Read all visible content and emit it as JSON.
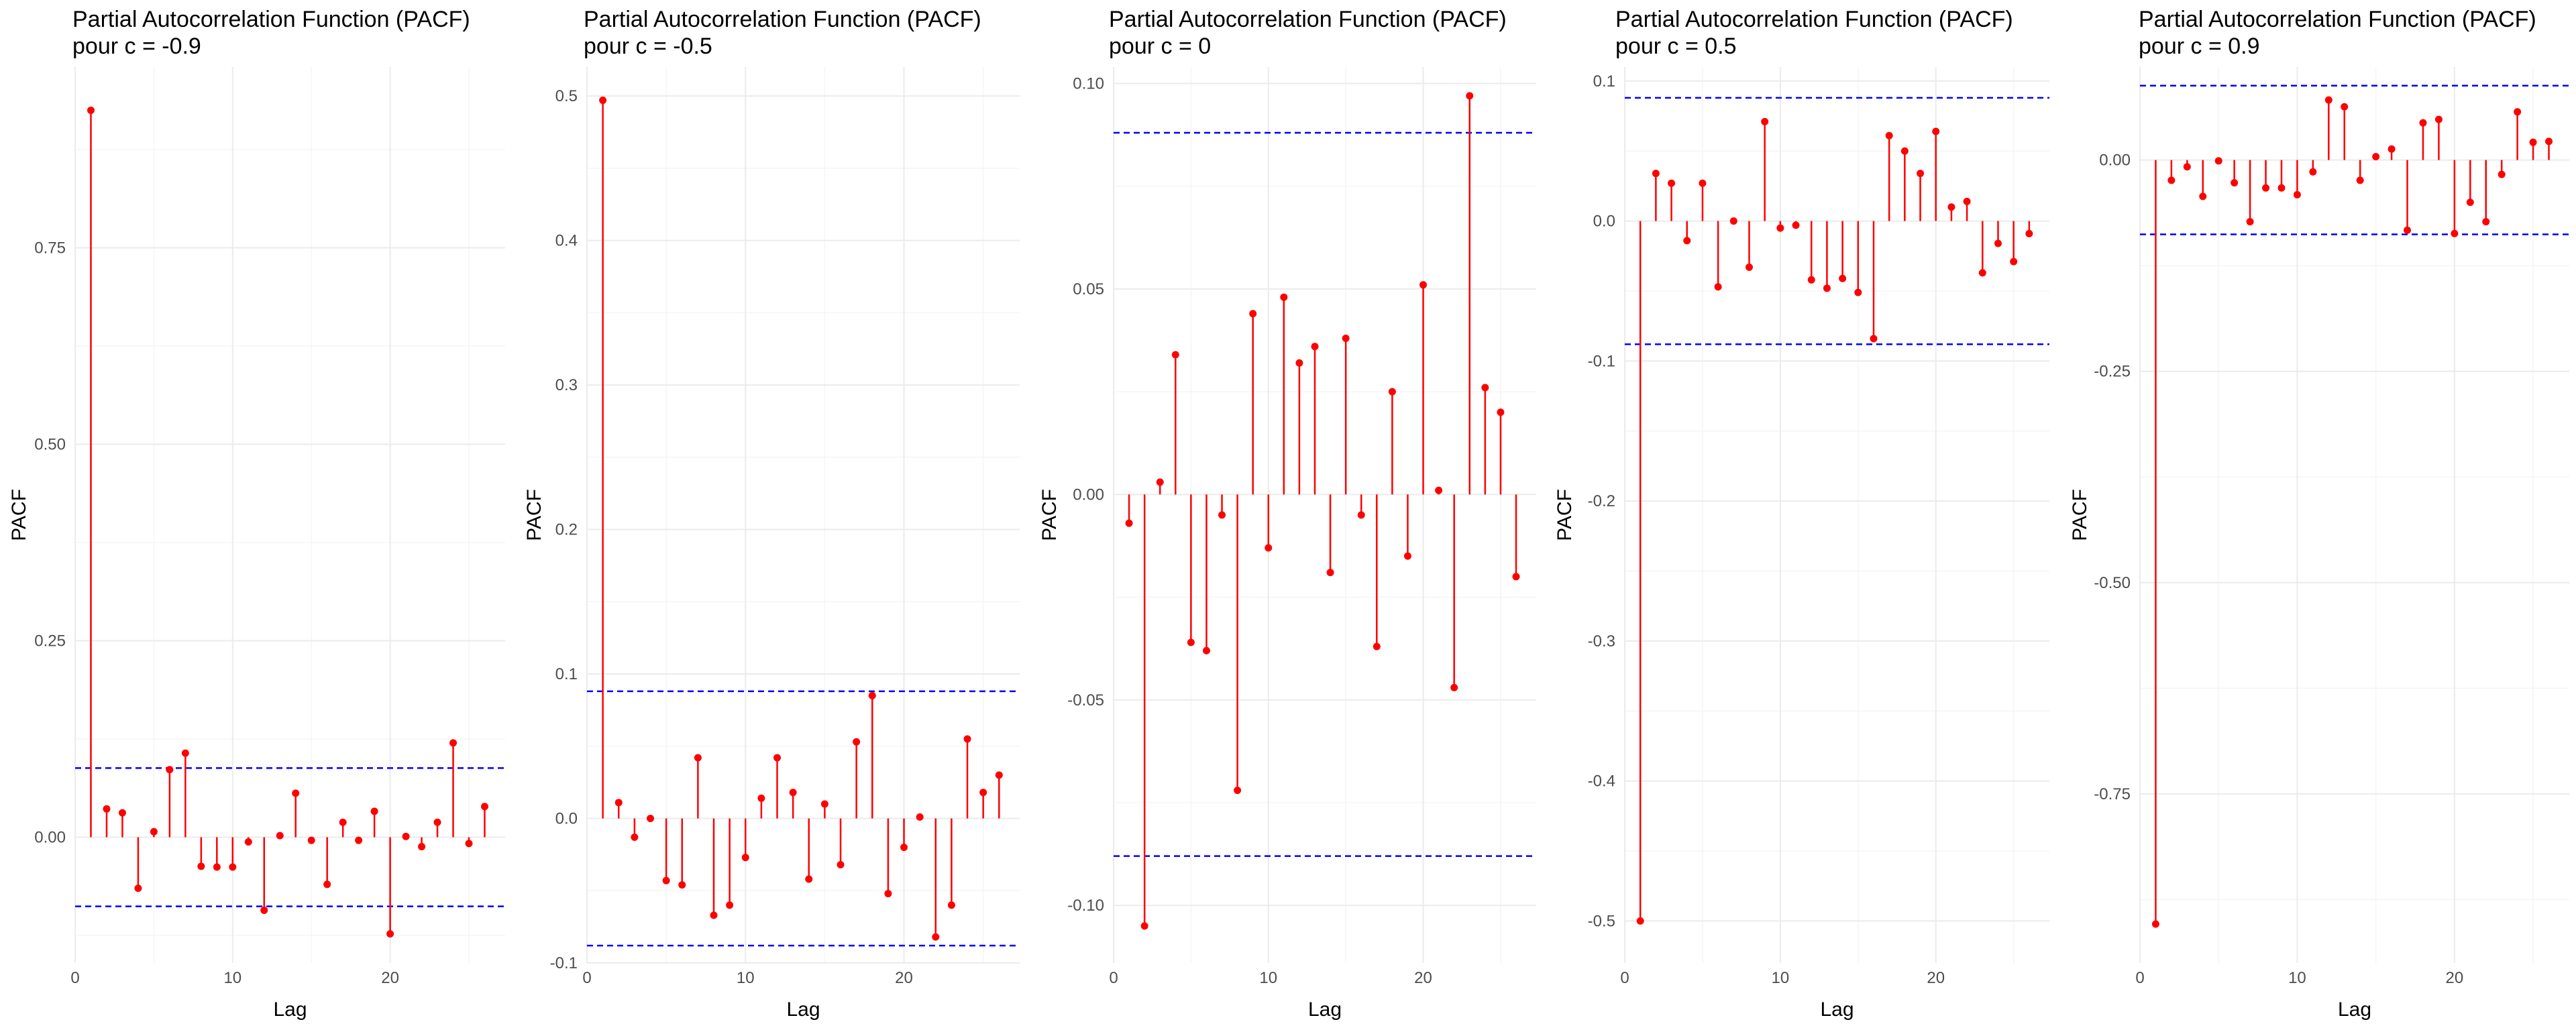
{
  "colors": {
    "stem": "#ff0000",
    "point": "#ff0000",
    "ci_line": "#0000ff",
    "grid_major": "#ebebeb",
    "grid_minor": "#f5f5f5",
    "tick_text": "#4d4d4d"
  },
  "chart_data": [
    {
      "type": "lollipop",
      "title": "Partial Autocorrelation Function (PACF)",
      "subtitle": " pour c = -0.9",
      "xlabel": "Lag",
      "ylabel": "PACF",
      "xlim": [
        0,
        27.3
      ],
      "ylim": [
        -0.16,
        0.98
      ],
      "xticks": [
        0,
        10,
        20
      ],
      "xtick_labels": [
        "0",
        "10",
        "20"
      ],
      "yticks": [
        0,
        0.25,
        0.5,
        0.75
      ],
      "ytick_labels": [
        "0.00",
        "0.25",
        "0.50",
        "0.75"
      ],
      "ci": 0.088,
      "grid": true,
      "x": [
        1,
        2,
        3,
        4,
        5,
        6,
        7,
        8,
        9,
        10,
        11,
        12,
        13,
        14,
        15,
        16,
        17,
        18,
        19,
        20,
        21,
        22,
        23,
        24,
        25,
        26
      ],
      "values": [
        0.925,
        0.036,
        0.031,
        -0.065,
        0.007,
        0.086,
        0.107,
        -0.037,
        -0.038,
        -0.038,
        -0.006,
        -0.093,
        0.002,
        0.056,
        -0.004,
        -0.06,
        0.019,
        -0.004,
        0.033,
        -0.123,
        0.001,
        -0.012,
        0.019,
        0.12,
        -0.008,
        0.039
      ]
    },
    {
      "type": "lollipop",
      "title": "Partial Autocorrelation Function (PACF)",
      "subtitle": " pour c = -0.5",
      "xlabel": "Lag",
      "ylabel": "PACF",
      "xlim": [
        0,
        27.3
      ],
      "ylim": [
        -0.1,
        0.52
      ],
      "xticks": [
        0,
        10,
        20
      ],
      "xtick_labels": [
        "0",
        "10",
        "20"
      ],
      "yticks": [
        -0.1,
        0,
        0.1,
        0.2,
        0.3,
        0.4,
        0.5
      ],
      "ytick_labels": [
        "-0.1",
        "0.0",
        "0.1",
        "0.2",
        "0.3",
        "0.4",
        "0.5"
      ],
      "ci": 0.088,
      "grid": true,
      "x": [
        1,
        2,
        3,
        4,
        5,
        6,
        7,
        8,
        9,
        10,
        11,
        12,
        13,
        14,
        15,
        16,
        17,
        18,
        19,
        20,
        21,
        22,
        23,
        24,
        25,
        26
      ],
      "values": [
        0.497,
        0.011,
        -0.013,
        0.0,
        -0.043,
        -0.046,
        0.042,
        -0.067,
        -0.06,
        -0.027,
        0.014,
        0.042,
        0.018,
        -0.042,
        0.01,
        -0.032,
        0.053,
        0.085,
        -0.052,
        -0.02,
        0.001,
        -0.082,
        -0.06,
        0.055,
        0.018,
        0.03
      ]
    },
    {
      "type": "lollipop",
      "title": "Partial Autocorrelation Function (PACF)",
      "subtitle": " pour c = 0",
      "xlabel": "Lag",
      "ylabel": "PACF",
      "xlim": [
        0,
        27.3
      ],
      "ylim": [
        -0.114,
        0.104
      ],
      "xticks": [
        0,
        10,
        20
      ],
      "xtick_labels": [
        "0",
        "10",
        "20"
      ],
      "yticks": [
        -0.1,
        -0.05,
        0,
        0.05,
        0.1
      ],
      "ytick_labels": [
        "-0.10",
        "-0.05",
        "0.00",
        "0.05",
        "0.10"
      ],
      "ci": 0.088,
      "grid": true,
      "x": [
        1,
        2,
        3,
        4,
        5,
        6,
        7,
        8,
        9,
        10,
        11,
        12,
        13,
        14,
        15,
        16,
        17,
        18,
        19,
        20,
        21,
        22,
        23,
        24,
        25,
        26
      ],
      "values": [
        -0.007,
        -0.105,
        0.003,
        0.034,
        -0.036,
        -0.038,
        -0.005,
        -0.072,
        0.044,
        -0.013,
        0.048,
        0.032,
        0.036,
        -0.019,
        0.038,
        -0.005,
        -0.037,
        0.025,
        -0.015,
        0.051,
        0.001,
        -0.047,
        0.097,
        0.026,
        0.02,
        -0.02
      ]
    },
    {
      "type": "lollipop",
      "title": "Partial Autocorrelation Function (PACF)",
      "subtitle": " pour c = 0.5",
      "xlabel": "Lag",
      "ylabel": "PACF",
      "xlim": [
        0,
        27.3
      ],
      "ylim": [
        -0.53,
        0.11
      ],
      "xticks": [
        0,
        10,
        20
      ],
      "xtick_labels": [
        "0",
        "10",
        "20"
      ],
      "yticks": [
        -0.5,
        -0.4,
        -0.3,
        -0.2,
        -0.1,
        0,
        0.1
      ],
      "ytick_labels": [
        "-0.5",
        "-0.4",
        "-0.3",
        "-0.2",
        "-0.1",
        "0.0",
        "0.1"
      ],
      "ci": 0.088,
      "grid": true,
      "x": [
        1,
        2,
        3,
        4,
        5,
        6,
        7,
        8,
        9,
        10,
        11,
        12,
        13,
        14,
        15,
        16,
        17,
        18,
        19,
        20,
        21,
        22,
        23,
        24,
        25,
        26
      ],
      "values": [
        -0.5,
        0.034,
        0.027,
        -0.014,
        0.027,
        -0.047,
        0.0,
        -0.033,
        0.071,
        -0.005,
        -0.003,
        -0.042,
        -0.048,
        -0.041,
        -0.051,
        -0.084,
        0.061,
        0.05,
        0.034,
        0.064,
        0.01,
        0.014,
        -0.037,
        -0.016,
        -0.029,
        -0.009
      ]
    },
    {
      "type": "lollipop",
      "title": "Partial Autocorrelation Function (PACF)",
      "subtitle": " pour c = 0.9",
      "xlabel": "Lag",
      "ylabel": "PACF",
      "xlim": [
        0,
        27.3
      ],
      "ylim": [
        -0.95,
        0.11
      ],
      "xticks": [
        0,
        10,
        20
      ],
      "xtick_labels": [
        "0",
        "10",
        "20"
      ],
      "yticks": [
        -0.75,
        -0.5,
        -0.25,
        0
      ],
      "ytick_labels": [
        "-0.75",
        "-0.50",
        "-0.25",
        "0.00"
      ],
      "ci": 0.088,
      "grid": true,
      "x": [
        1,
        2,
        3,
        4,
        5,
        6,
        7,
        8,
        9,
        10,
        11,
        12,
        13,
        14,
        15,
        16,
        17,
        18,
        19,
        20,
        21,
        22,
        23,
        24,
        25,
        26
      ],
      "values": [
        -0.904,
        -0.024,
        -0.008,
        -0.043,
        -0.001,
        -0.027,
        -0.073,
        -0.033,
        -0.033,
        -0.041,
        -0.014,
        0.071,
        0.063,
        -0.024,
        0.004,
        0.013,
        -0.083,
        0.044,
        0.048,
        -0.087,
        -0.05,
        -0.073,
        -0.017,
        0.057,
        0.021,
        0.022
      ]
    }
  ]
}
